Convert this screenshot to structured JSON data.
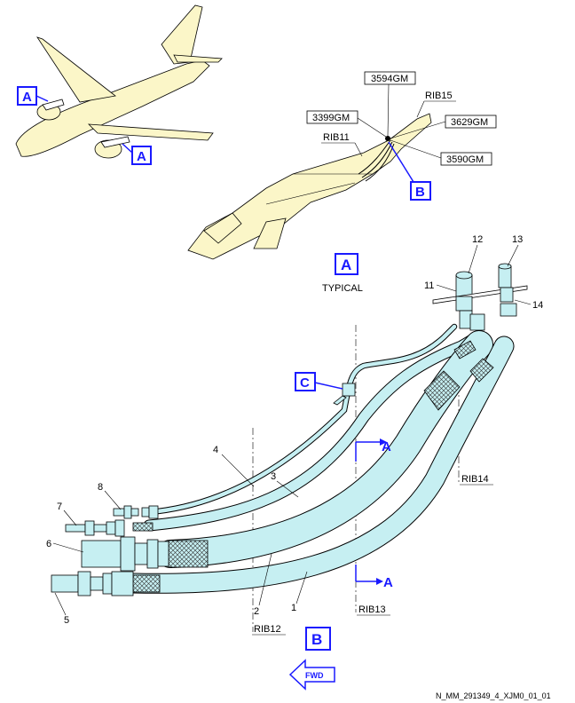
{
  "callouts": {
    "a_top_left": "A",
    "a_engine": "A",
    "b_wing": "B",
    "c_clamp": "C",
    "a_view_title": "A",
    "b_view_title": "B",
    "section_a_top": "A",
    "section_a_bottom": "A"
  },
  "view_a": {
    "subtitle": "TYPICAL",
    "zone_boxes": [
      "3594GM",
      "3399GM",
      "3629GM",
      "3590GM"
    ],
    "ribs": [
      "RIB15",
      "RIB11"
    ]
  },
  "view_b": {
    "ribs": [
      "RIB14",
      "RIB12",
      "RIB13"
    ],
    "item_numbers": [
      "12",
      "13",
      "11",
      "14",
      "4",
      "3",
      "8",
      "7",
      "6",
      "5",
      "2",
      "1"
    ]
  },
  "fwd_arrow": "FWD",
  "drawing_ref": "N_MM_291349_4_XJM0_01_01",
  "colors": {
    "airframe": "#fbf6c8",
    "hose": "#c6eff2",
    "callout": "#1a1aff"
  }
}
